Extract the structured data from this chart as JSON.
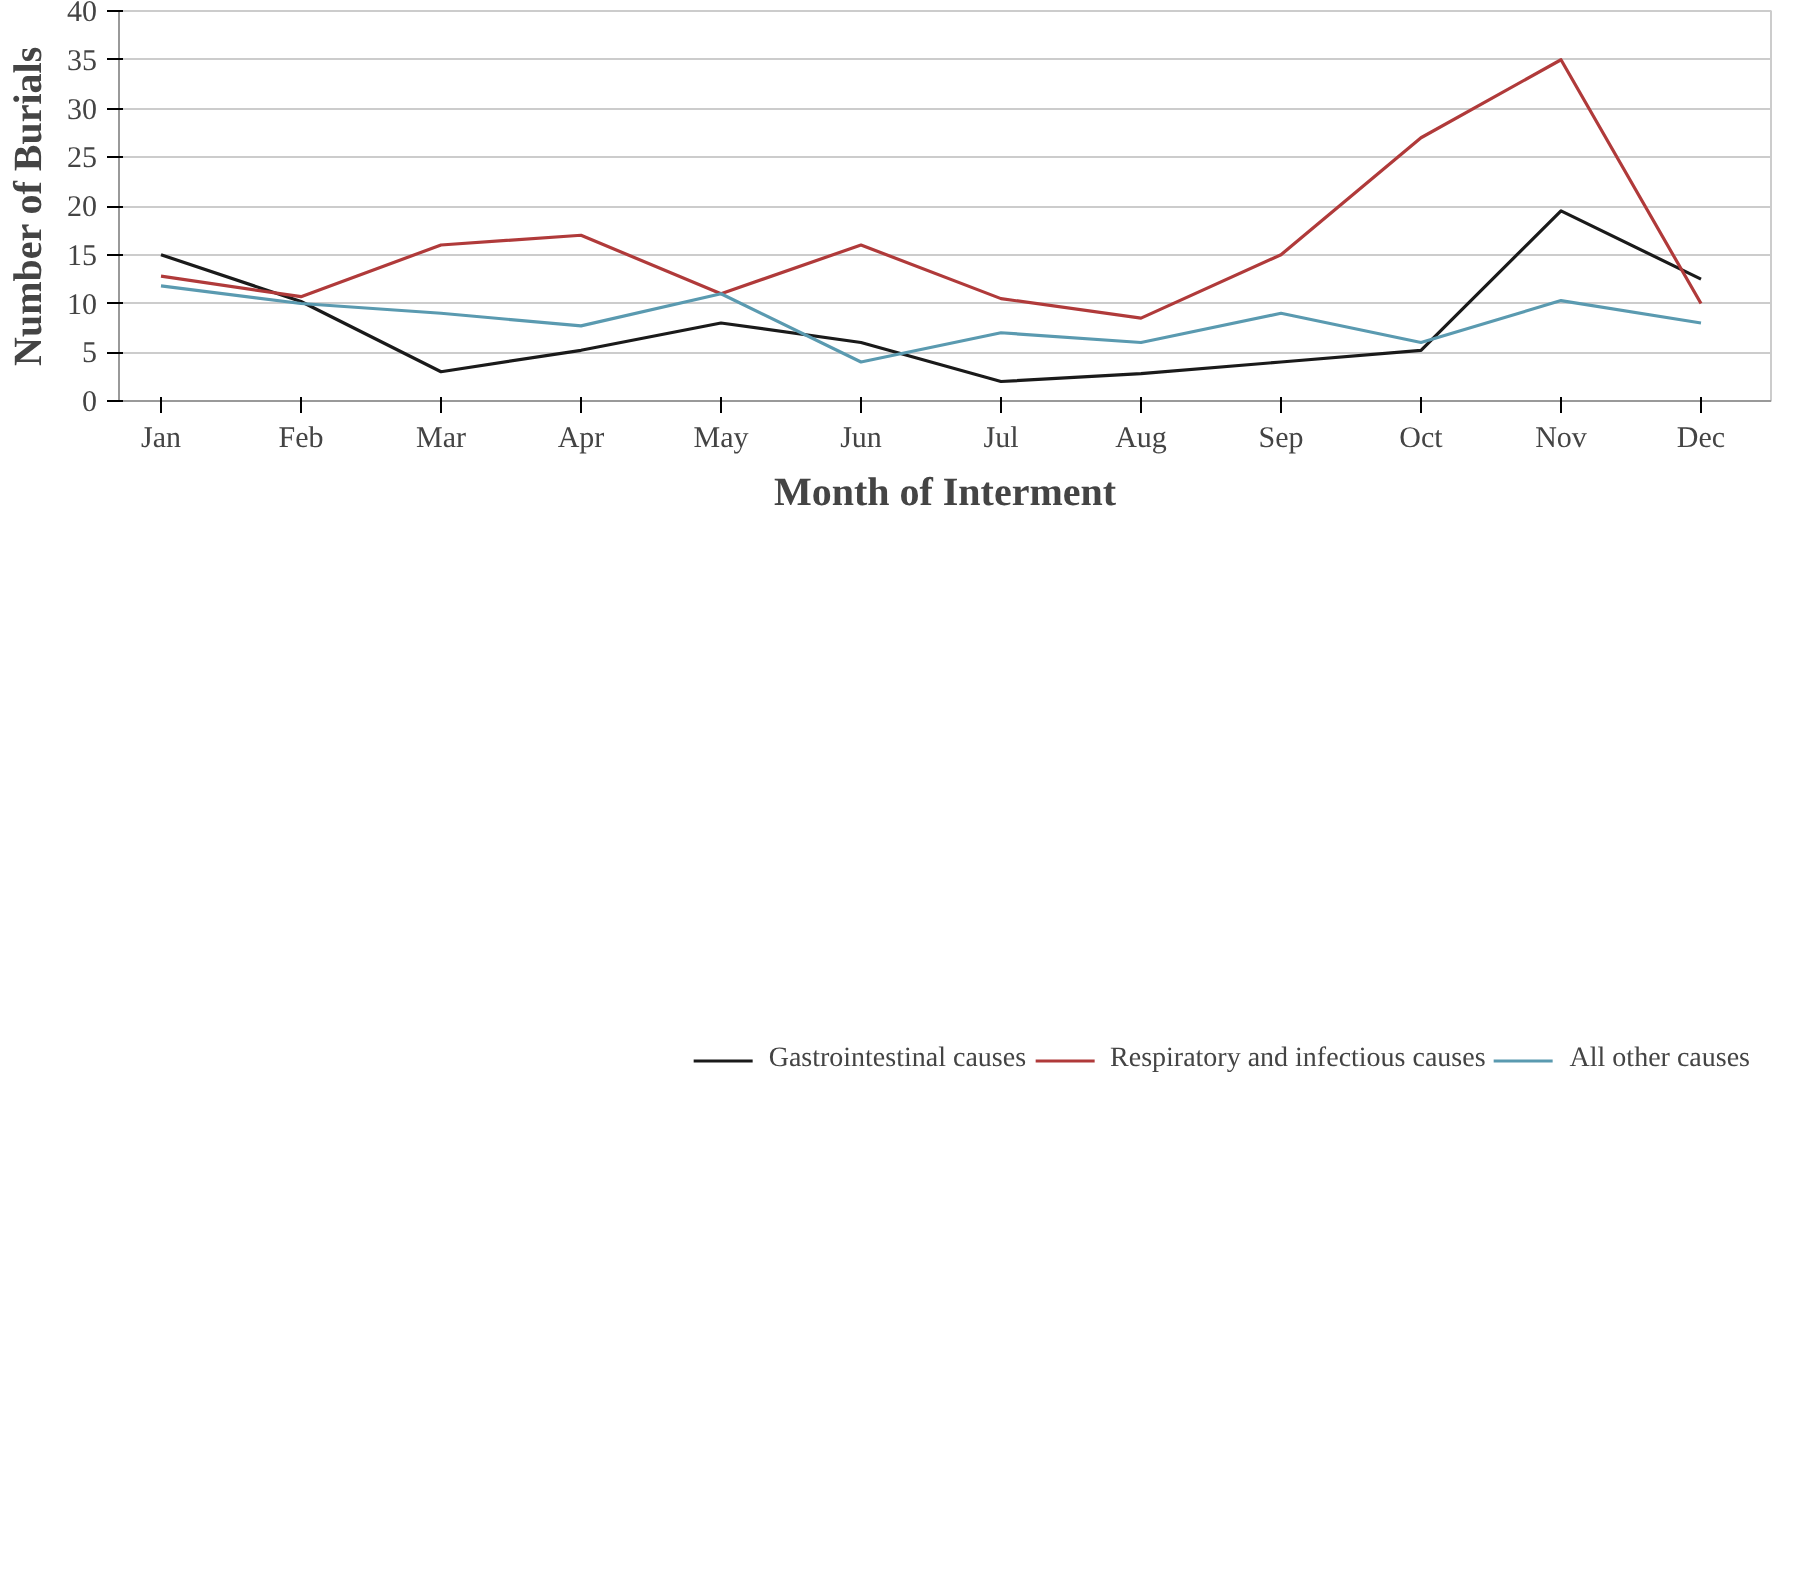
{
  "chart_data": {
    "type": "line",
    "xlabel": "Month of Interment",
    "ylabel": "Number of Burials",
    "categories": [
      "Jan",
      "Feb",
      "Mar",
      "Apr",
      "May",
      "Jun",
      "Jul",
      "Aug",
      "Sep",
      "Oct",
      "Nov",
      "Dec"
    ],
    "ylim": [
      0,
      40
    ],
    "yticks": [
      0,
      5,
      10,
      15,
      20,
      25,
      30,
      35,
      40
    ],
    "grid": "y",
    "legend": "bottom",
    "marker": "none",
    "line_style": "solid",
    "series": [
      {
        "name": "Gastrointestinal causes",
        "color": "#1a1a1a",
        "values": [
          15,
          10.2,
          3,
          5.2,
          8,
          6,
          2,
          2.8,
          4,
          5.2,
          19.5,
          12.5
        ]
      },
      {
        "name": "Respiratory and infectious causes",
        "color": "#b03a3a",
        "values": [
          12.8,
          10.7,
          16,
          17,
          11,
          16,
          10.5,
          8.5,
          15,
          27,
          35,
          10
        ]
      },
      {
        "name": "All other causes",
        "color": "#5a9ab0",
        "values": [
          11.8,
          10,
          9,
          7.7,
          11,
          4,
          7,
          6,
          9,
          6,
          10.3,
          8
        ]
      }
    ]
  }
}
